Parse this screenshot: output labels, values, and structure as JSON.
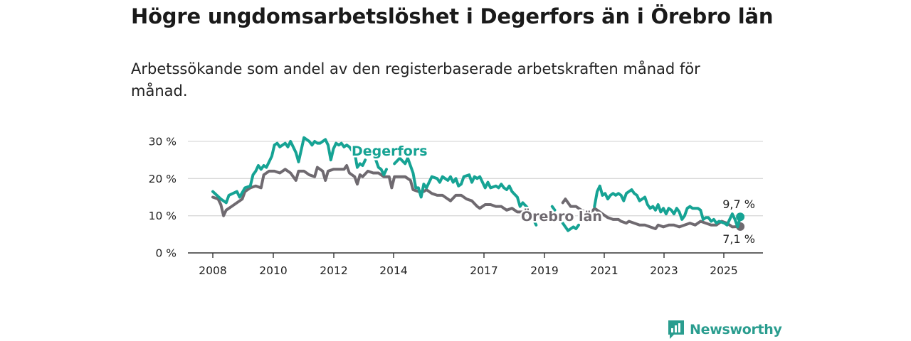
{
  "title": "Högre ungdomsarbetslöshet i Degerfors än i Örebro län",
  "subtitle": "Arbetssökande som andel av den registerbaserade arbetskraften månad för månad.",
  "brand": {
    "name": "Newsworthy",
    "icon": "newsworthy-logo-icon",
    "color": "#2a9d8f"
  },
  "colors": {
    "degerfors": "#16a394",
    "orebro": "#6f6a70",
    "grid": "#d9d9d9",
    "axis": "#333333"
  },
  "chart_data": {
    "type": "line",
    "x_unit": "year",
    "xlim": [
      2007.8,
      2025.8
    ],
    "ylim": [
      0,
      30
    ],
    "y_ticks": [
      0,
      10,
      20,
      30
    ],
    "y_tick_labels": [
      "0 %",
      "10 %",
      "20 %",
      "30 %"
    ],
    "x_ticks": [
      2008,
      2010,
      2012,
      2014,
      2017,
      2019,
      2021,
      2023,
      2025
    ],
    "x_tick_labels": [
      "2008",
      "2010",
      "2012",
      "2014",
      "2017",
      "2019",
      "2021",
      "2023",
      "2025"
    ],
    "grid": "horizontal",
    "series": [
      {
        "name": "Degerfors",
        "end_label": "9,7 %",
        "points": [
          [
            2008.0,
            16.5
          ],
          [
            2008.3,
            14.5
          ],
          [
            2008.5,
            13.5
          ],
          [
            2008.6,
            15.5
          ],
          [
            2008.9,
            16.5
          ],
          [
            2009.0,
            15.0
          ],
          [
            2009.2,
            17.5
          ],
          [
            2009.4,
            18.0
          ],
          [
            2009.5,
            21.0
          ],
          [
            2009.6,
            22.0
          ],
          [
            2009.7,
            23.5
          ],
          [
            2009.8,
            22.5
          ],
          [
            2009.9,
            23.5
          ],
          [
            2010.0,
            23.0
          ],
          [
            2010.2,
            26.0
          ],
          [
            2010.3,
            29.0
          ],
          [
            2010.4,
            29.5
          ],
          [
            2010.5,
            28.5
          ],
          [
            2010.6,
            29.0
          ],
          [
            2010.7,
            29.5
          ],
          [
            2010.8,
            28.5
          ],
          [
            2010.9,
            30.0
          ],
          [
            2011.1,
            27.0
          ],
          [
            2011.2,
            24.5
          ],
          [
            2011.4,
            31.0
          ],
          [
            2011.5,
            30.5
          ],
          [
            2011.6,
            30.0
          ],
          [
            2011.7,
            29.0
          ],
          [
            2011.8,
            30.0
          ],
          [
            2011.9,
            29.5
          ],
          [
            2012.0,
            29.5
          ],
          [
            2012.1,
            30.0
          ],
          [
            2012.2,
            30.5
          ],
          [
            2012.3,
            29.0
          ],
          [
            2012.4,
            25.0
          ],
          [
            2012.5,
            28.0
          ],
          [
            2012.6,
            29.5
          ],
          [
            2012.7,
            29.0
          ],
          [
            2012.8,
            29.5
          ],
          [
            2012.9,
            28.5
          ],
          [
            2013.0,
            29.0
          ],
          [
            2013.1,
            28.5
          ],
          [
            2013.2,
            27.5
          ],
          [
            2013.3,
            27.0
          ],
          [
            2013.4,
            23.0
          ],
          [
            2013.5,
            24.0
          ],
          [
            2013.6,
            23.5
          ],
          [
            2013.7,
            25.0
          ],
          null,
          [
            2014.1,
            25.0
          ],
          [
            2014.2,
            23.0
          ],
          [
            2014.3,
            22.5
          ],
          [
            2014.4,
            21.0
          ],
          [
            2014.5,
            22.5
          ],
          null,
          [
            2014.8,
            24.0
          ],
          [
            2015.0,
            25.5
          ],
          [
            2015.2,
            24.0
          ],
          [
            2015.3,
            25.5
          ],
          [
            2015.5,
            21.5
          ],
          [
            2015.6,
            17.5
          ],
          [
            2015.7,
            17.5
          ],
          [
            2015.8,
            15.0
          ],
          [
            2015.9,
            18.5
          ],
          [
            2016.0,
            17.5
          ],
          [
            2016.2,
            20.5
          ],
          [
            2016.4,
            20.0
          ],
          [
            2016.5,
            19.0
          ],
          [
            2016.6,
            20.5
          ],
          [
            2016.8,
            19.5
          ],
          [
            2016.9,
            20.5
          ],
          [
            2017.0,
            19.0
          ],
          [
            2017.1,
            20.0
          ],
          [
            2017.2,
            18.0
          ],
          [
            2017.3,
            18.5
          ],
          [
            2017.4,
            20.5
          ],
          [
            2017.6,
            21.0
          ],
          [
            2017.7,
            19.0
          ],
          [
            2017.8,
            20.5
          ],
          [
            2017.9,
            20.0
          ],
          [
            2018.0,
            20.5
          ],
          [
            2018.2,
            17.5
          ],
          [
            2018.3,
            19.0
          ],
          [
            2018.4,
            17.5
          ],
          [
            2018.6,
            18.0
          ],
          [
            2018.7,
            17.5
          ],
          [
            2018.8,
            18.5
          ],
          [
            2018.9,
            17.5
          ],
          [
            2019.0,
            17.0
          ],
          [
            2019.1,
            18.0
          ],
          [
            2019.2,
            16.5
          ],
          [
            2019.4,
            15.0
          ],
          [
            2019.5,
            12.5
          ],
          [
            2019.6,
            13.5
          ],
          [
            2019.8,
            12.0
          ],
          [
            2019.9,
            10.5
          ],
          [
            2020.0,
            9.0
          ],
          [
            2020.1,
            7.5
          ],
          null,
          [
            2020.7,
            12.5
          ],
          [
            2020.8,
            11.5
          ],
          null,
          [
            2021.1,
            8.0
          ],
          [
            2021.2,
            7.0
          ],
          [
            2021.3,
            6.0
          ],
          [
            2021.5,
            7.0
          ],
          [
            2021.6,
            6.5
          ],
          [
            2021.7,
            7.5
          ],
          null,
          [
            2022.3,
            12.5
          ],
          [
            2022.4,
            16.5
          ],
          [
            2022.5,
            18.0
          ],
          [
            2022.6,
            15.5
          ],
          [
            2022.7,
            16.0
          ],
          [
            2022.8,
            14.5
          ],
          [
            2022.9,
            15.5
          ],
          [
            2023.0,
            16.0
          ],
          [
            2023.1,
            15.5
          ],
          [
            2023.2,
            16.0
          ],
          [
            2023.3,
            15.5
          ],
          [
            2023.4,
            14.0
          ],
          [
            2023.5,
            16.0
          ],
          [
            2023.6,
            16.5
          ],
          [
            2023.7,
            17.0
          ],
          [
            2023.8,
            16.0
          ],
          [
            2023.9,
            15.5
          ],
          [
            2024.0,
            14.0
          ],
          [
            2024.1,
            14.5
          ],
          [
            2024.2,
            15.0
          ],
          [
            2024.3,
            13.0
          ],
          [
            2024.4,
            12.0
          ],
          [
            2024.5,
            12.5
          ],
          [
            2024.6,
            11.5
          ],
          [
            2024.7,
            13.0
          ],
          [
            2024.8,
            11.0
          ],
          [
            2024.9,
            12.0
          ],
          [
            2025.0,
            10.5
          ],
          [
            2025.1,
            12.0
          ],
          [
            2025.2,
            11.5
          ],
          [
            2025.3,
            10.5
          ],
          [
            2025.4,
            12.0
          ],
          [
            2025.5,
            11.0
          ],
          [
            2025.6,
            9.0
          ],
          [
            2025.7,
            10.0
          ],
          [
            2025.8,
            12.0
          ],
          [
            2025.9,
            12.5
          ],
          [
            2026.0,
            12.0
          ],
          [
            2026.2,
            12.0
          ],
          [
            2026.3,
            11.5
          ],
          [
            2026.4,
            9.0
          ],
          [
            2026.5,
            9.5
          ],
          [
            2026.6,
            9.5
          ],
          [
            2026.7,
            8.5
          ],
          [
            2026.8,
            9.0
          ],
          [
            2026.9,
            8.0
          ],
          [
            2027.0,
            8.5
          ],
          [
            2027.2,
            8.0
          ],
          [
            2027.3,
            7.5
          ],
          [
            2027.4,
            9.0
          ],
          [
            2027.5,
            10.5
          ],
          [
            2027.6,
            9.0
          ],
          [
            2027.7,
            7.0
          ],
          [
            2027.8,
            9.7
          ]
        ]
      },
      {
        "name": "Örebro län",
        "end_label": "7,1 %",
        "points": [
          [
            2008.0,
            15.0
          ],
          [
            2008.2,
            14.5
          ],
          [
            2008.3,
            13.0
          ],
          [
            2008.4,
            10.0
          ],
          [
            2008.5,
            11.5
          ],
          [
            2008.7,
            12.5
          ],
          [
            2008.9,
            13.5
          ],
          [
            2009.1,
            14.5
          ],
          [
            2009.2,
            16.5
          ],
          [
            2009.4,
            17.5
          ],
          [
            2009.6,
            18.0
          ],
          [
            2009.8,
            17.5
          ],
          [
            2009.9,
            21.0
          ],
          [
            2010.1,
            22.0
          ],
          [
            2010.3,
            22.0
          ],
          [
            2010.5,
            21.5
          ],
          [
            2010.7,
            22.5
          ],
          [
            2010.9,
            21.5
          ],
          [
            2011.1,
            19.5
          ],
          [
            2011.2,
            22.0
          ],
          [
            2011.4,
            22.0
          ],
          [
            2011.6,
            21.0
          ],
          [
            2011.8,
            20.5
          ],
          [
            2011.9,
            23.0
          ],
          [
            2012.1,
            22.0
          ],
          [
            2012.2,
            19.5
          ],
          [
            2012.3,
            22.0
          ],
          [
            2012.5,
            22.5
          ],
          [
            2012.7,
            22.5
          ],
          [
            2012.9,
            22.5
          ],
          [
            2013.0,
            23.5
          ],
          [
            2013.1,
            21.5
          ],
          [
            2013.3,
            20.5
          ],
          [
            2013.4,
            18.5
          ],
          [
            2013.5,
            21.0
          ],
          [
            2013.6,
            20.5
          ],
          [
            2013.8,
            22.0
          ],
          [
            2014.0,
            21.5
          ],
          [
            2014.2,
            21.5
          ],
          [
            2014.4,
            20.5
          ],
          [
            2014.6,
            20.5
          ],
          [
            2014.7,
            17.5
          ],
          [
            2014.8,
            20.5
          ],
          [
            2015.0,
            20.5
          ],
          [
            2015.2,
            20.5
          ],
          [
            2015.4,
            19.5
          ],
          [
            2015.5,
            17.0
          ],
          [
            2015.7,
            16.5
          ],
          [
            2015.9,
            16.5
          ],
          [
            2016.0,
            17.0
          ],
          [
            2016.2,
            16.0
          ],
          [
            2016.4,
            15.5
          ],
          [
            2016.6,
            15.5
          ],
          [
            2016.8,
            14.5
          ],
          [
            2016.9,
            14.0
          ],
          [
            2017.1,
            15.5
          ],
          [
            2017.3,
            15.5
          ],
          [
            2017.5,
            14.5
          ],
          [
            2017.7,
            14.0
          ],
          [
            2017.9,
            12.5
          ],
          [
            2018.0,
            12.0
          ],
          [
            2018.2,
            13.0
          ],
          [
            2018.4,
            13.0
          ],
          [
            2018.6,
            12.5
          ],
          [
            2018.8,
            12.5
          ],
          [
            2019.0,
            11.5
          ],
          [
            2019.2,
            12.0
          ],
          [
            2019.4,
            11.0
          ],
          [
            2019.6,
            11.0
          ],
          [
            2019.8,
            10.5
          ],
          [
            2020.0,
            10.5
          ],
          null,
          [
            2021.1,
            13.5
          ],
          [
            2021.2,
            14.5
          ],
          [
            2021.4,
            12.5
          ],
          [
            2021.6,
            12.5
          ],
          [
            2021.8,
            11.5
          ],
          [
            2022.0,
            11.0
          ],
          [
            2022.2,
            11.0
          ],
          [
            2022.3,
            12.0
          ],
          [
            2022.4,
            11.5
          ],
          [
            2022.6,
            10.5
          ],
          [
            2022.8,
            9.5
          ],
          [
            2023.0,
            9.0
          ],
          [
            2023.2,
            9.0
          ],
          [
            2023.3,
            8.5
          ],
          [
            2023.5,
            8.0
          ],
          [
            2023.6,
            8.5
          ],
          [
            2023.8,
            8.0
          ],
          [
            2024.0,
            7.5
          ],
          [
            2024.2,
            7.5
          ],
          [
            2024.4,
            7.0
          ],
          [
            2024.6,
            6.5
          ],
          [
            2024.7,
            7.5
          ],
          [
            2024.9,
            7.0
          ],
          [
            2025.1,
            7.5
          ],
          [
            2025.3,
            7.5
          ],
          [
            2025.5,
            7.0
          ],
          [
            2025.7,
            7.5
          ],
          [
            2025.9,
            8.0
          ],
          [
            2026.1,
            7.5
          ],
          [
            2026.3,
            8.5
          ],
          [
            2026.5,
            8.0
          ],
          [
            2026.7,
            7.5
          ],
          [
            2026.9,
            7.5
          ],
          [
            2027.1,
            8.5
          ],
          [
            2027.3,
            8.0
          ],
          [
            2027.5,
            7.0
          ],
          [
            2027.8,
            7.1
          ]
        ]
      }
    ],
    "series_labels": [
      {
        "text": "Degerfors",
        "series": 0
      },
      {
        "text": "Örebro län",
        "series": 1
      }
    ]
  }
}
